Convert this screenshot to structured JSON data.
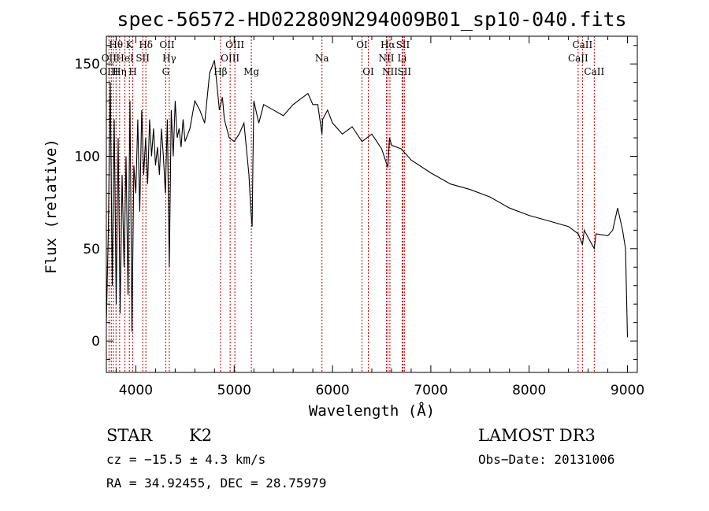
{
  "chart_data": {
    "type": "line",
    "title": "spec-56572-HD022809N294009B01_sp10-040.fits",
    "xlabel": "Wavelength (Å)",
    "ylabel": "Flux (relative)",
    "xlim": [
      3700,
      9100
    ],
    "ylim": [
      -17,
      165
    ],
    "x_ticks": [
      4000,
      5000,
      6000,
      7000,
      8000,
      9000
    ],
    "y_ticks": [
      0,
      50,
      100,
      150
    ],
    "series": [
      {
        "name": "flux",
        "x": [
          3700,
          3720,
          3740,
          3760,
          3780,
          3800,
          3820,
          3840,
          3860,
          3880,
          3900,
          3920,
          3940,
          3960,
          3980,
          4000,
          4020,
          4040,
          4060,
          4080,
          4100,
          4120,
          4140,
          4160,
          4180,
          4200,
          4220,
          4240,
          4260,
          4280,
          4300,
          4320,
          4340,
          4360,
          4380,
          4400,
          4420,
          4440,
          4460,
          4480,
          4500,
          4550,
          4600,
          4650,
          4700,
          4750,
          4800,
          4850,
          4880,
          4900,
          4950,
          5000,
          5050,
          5100,
          5150,
          5170,
          5183,
          5190,
          5200,
          5250,
          5300,
          5400,
          5500,
          5600,
          5700,
          5750,
          5800,
          5850,
          5893,
          5900,
          5950,
          6000,
          6100,
          6200,
          6300,
          6400,
          6500,
          6563,
          6580,
          6600,
          6700,
          6800,
          7000,
          7200,
          7400,
          7600,
          7800,
          8000,
          8200,
          8400,
          8500,
          8542,
          8560,
          8600,
          8662,
          8680,
          8800,
          8850,
          8900,
          8950,
          8980,
          9000
        ],
        "values": [
          10,
          60,
          140,
          30,
          120,
          20,
          110,
          15,
          90,
          40,
          100,
          25,
          130,
          5,
          95,
          80,
          120,
          70,
          125,
          90,
          110,
          85,
          120,
          100,
          115,
          95,
          105,
          90,
          115,
          100,
          80,
          120,
          40,
          125,
          100,
          130,
          110,
          115,
          105,
          120,
          108,
          115,
          130,
          125,
          118,
          145,
          152,
          125,
          132,
          120,
          110,
          108,
          112,
          118,
          90,
          70,
          62,
          95,
          130,
          118,
          128,
          125,
          122,
          128,
          132,
          134,
          128,
          128,
          112,
          120,
          125,
          118,
          112,
          116,
          108,
          112,
          104,
          94,
          110,
          106,
          104,
          98,
          91,
          85,
          82,
          78,
          72,
          68,
          65,
          62,
          58,
          52,
          60,
          56,
          50,
          58,
          57,
          60,
          72,
          60,
          50,
          2
        ]
      }
    ],
    "line_labels": [
      {
        "label": "Hθ",
        "row": 1,
        "wavelength": 3798
      },
      {
        "label": "OII",
        "row": 2,
        "wavelength": 3727
      },
      {
        "label": "OIII",
        "row": 3,
        "wavelength": 3727
      },
      {
        "label": "Hη",
        "row": 3,
        "wavelength": 3835
      },
      {
        "label": "HeI",
        "row": 2,
        "wavelength": 3889
      },
      {
        "label": "K",
        "row": 1,
        "wavelength": 3934
      },
      {
        "label": "SII",
        "row": 2,
        "wavelength": 4070
      },
      {
        "label": "H",
        "row": 3,
        "wavelength": 3969
      },
      {
        "label": "Hδ",
        "row": 1,
        "wavelength": 4102
      },
      {
        "label": "OII",
        "row": 1,
        "wavelength": 4317
      },
      {
        "label": "Hγ",
        "row": 2,
        "wavelength": 4340
      },
      {
        "label": "G",
        "row": 3,
        "wavelength": 4304
      },
      {
        "label": "Hβ",
        "row": 3,
        "wavelength": 4861
      },
      {
        "label": "OIII",
        "row": 1,
        "wavelength": 5007
      },
      {
        "label": "OIII",
        "row": 2,
        "wavelength": 4959
      },
      {
        "label": "Mg",
        "row": 3,
        "wavelength": 5175
      },
      {
        "label": "Na",
        "row": 2,
        "wavelength": 5893
      },
      {
        "label": "OI",
        "row": 1,
        "wavelength": 6300
      },
      {
        "label": "OI",
        "row": 3,
        "wavelength": 6364
      },
      {
        "label": "Hα",
        "row": 1,
        "wavelength": 6563
      },
      {
        "label": "NII",
        "row": 2,
        "wavelength": 6548
      },
      {
        "label": "NII",
        "row": 3,
        "wavelength": 6584
      },
      {
        "label": "SII",
        "row": 1,
        "wavelength": 6716
      },
      {
        "label": "Li",
        "row": 2,
        "wavelength": 6708
      },
      {
        "label": "SII",
        "row": 3,
        "wavelength": 6731
      },
      {
        "label": "CaII",
        "row": 1,
        "wavelength": 8542
      },
      {
        "label": "CaII",
        "row": 2,
        "wavelength": 8498
      },
      {
        "label": "CaII",
        "row": 3,
        "wavelength": 8662
      }
    ],
    "line_markers": [
      3727,
      3750,
      3771,
      3798,
      3835,
      3889,
      3934,
      3969,
      4070,
      4102,
      4304,
      4340,
      4861,
      4959,
      5007,
      5175,
      5893,
      6300,
      6364,
      6548,
      6563,
      6584,
      6708,
      6716,
      6731,
      8498,
      8542,
      8662
    ]
  },
  "info": {
    "object_type": "STAR",
    "subclass": "K2",
    "survey": "LAMOST DR3",
    "cz": "cz = −15.5 ± 4.3 km/s",
    "obs_date": "Obs−Date: 20131006",
    "coords": "RA =  34.92455, DEC =  28.75979"
  }
}
